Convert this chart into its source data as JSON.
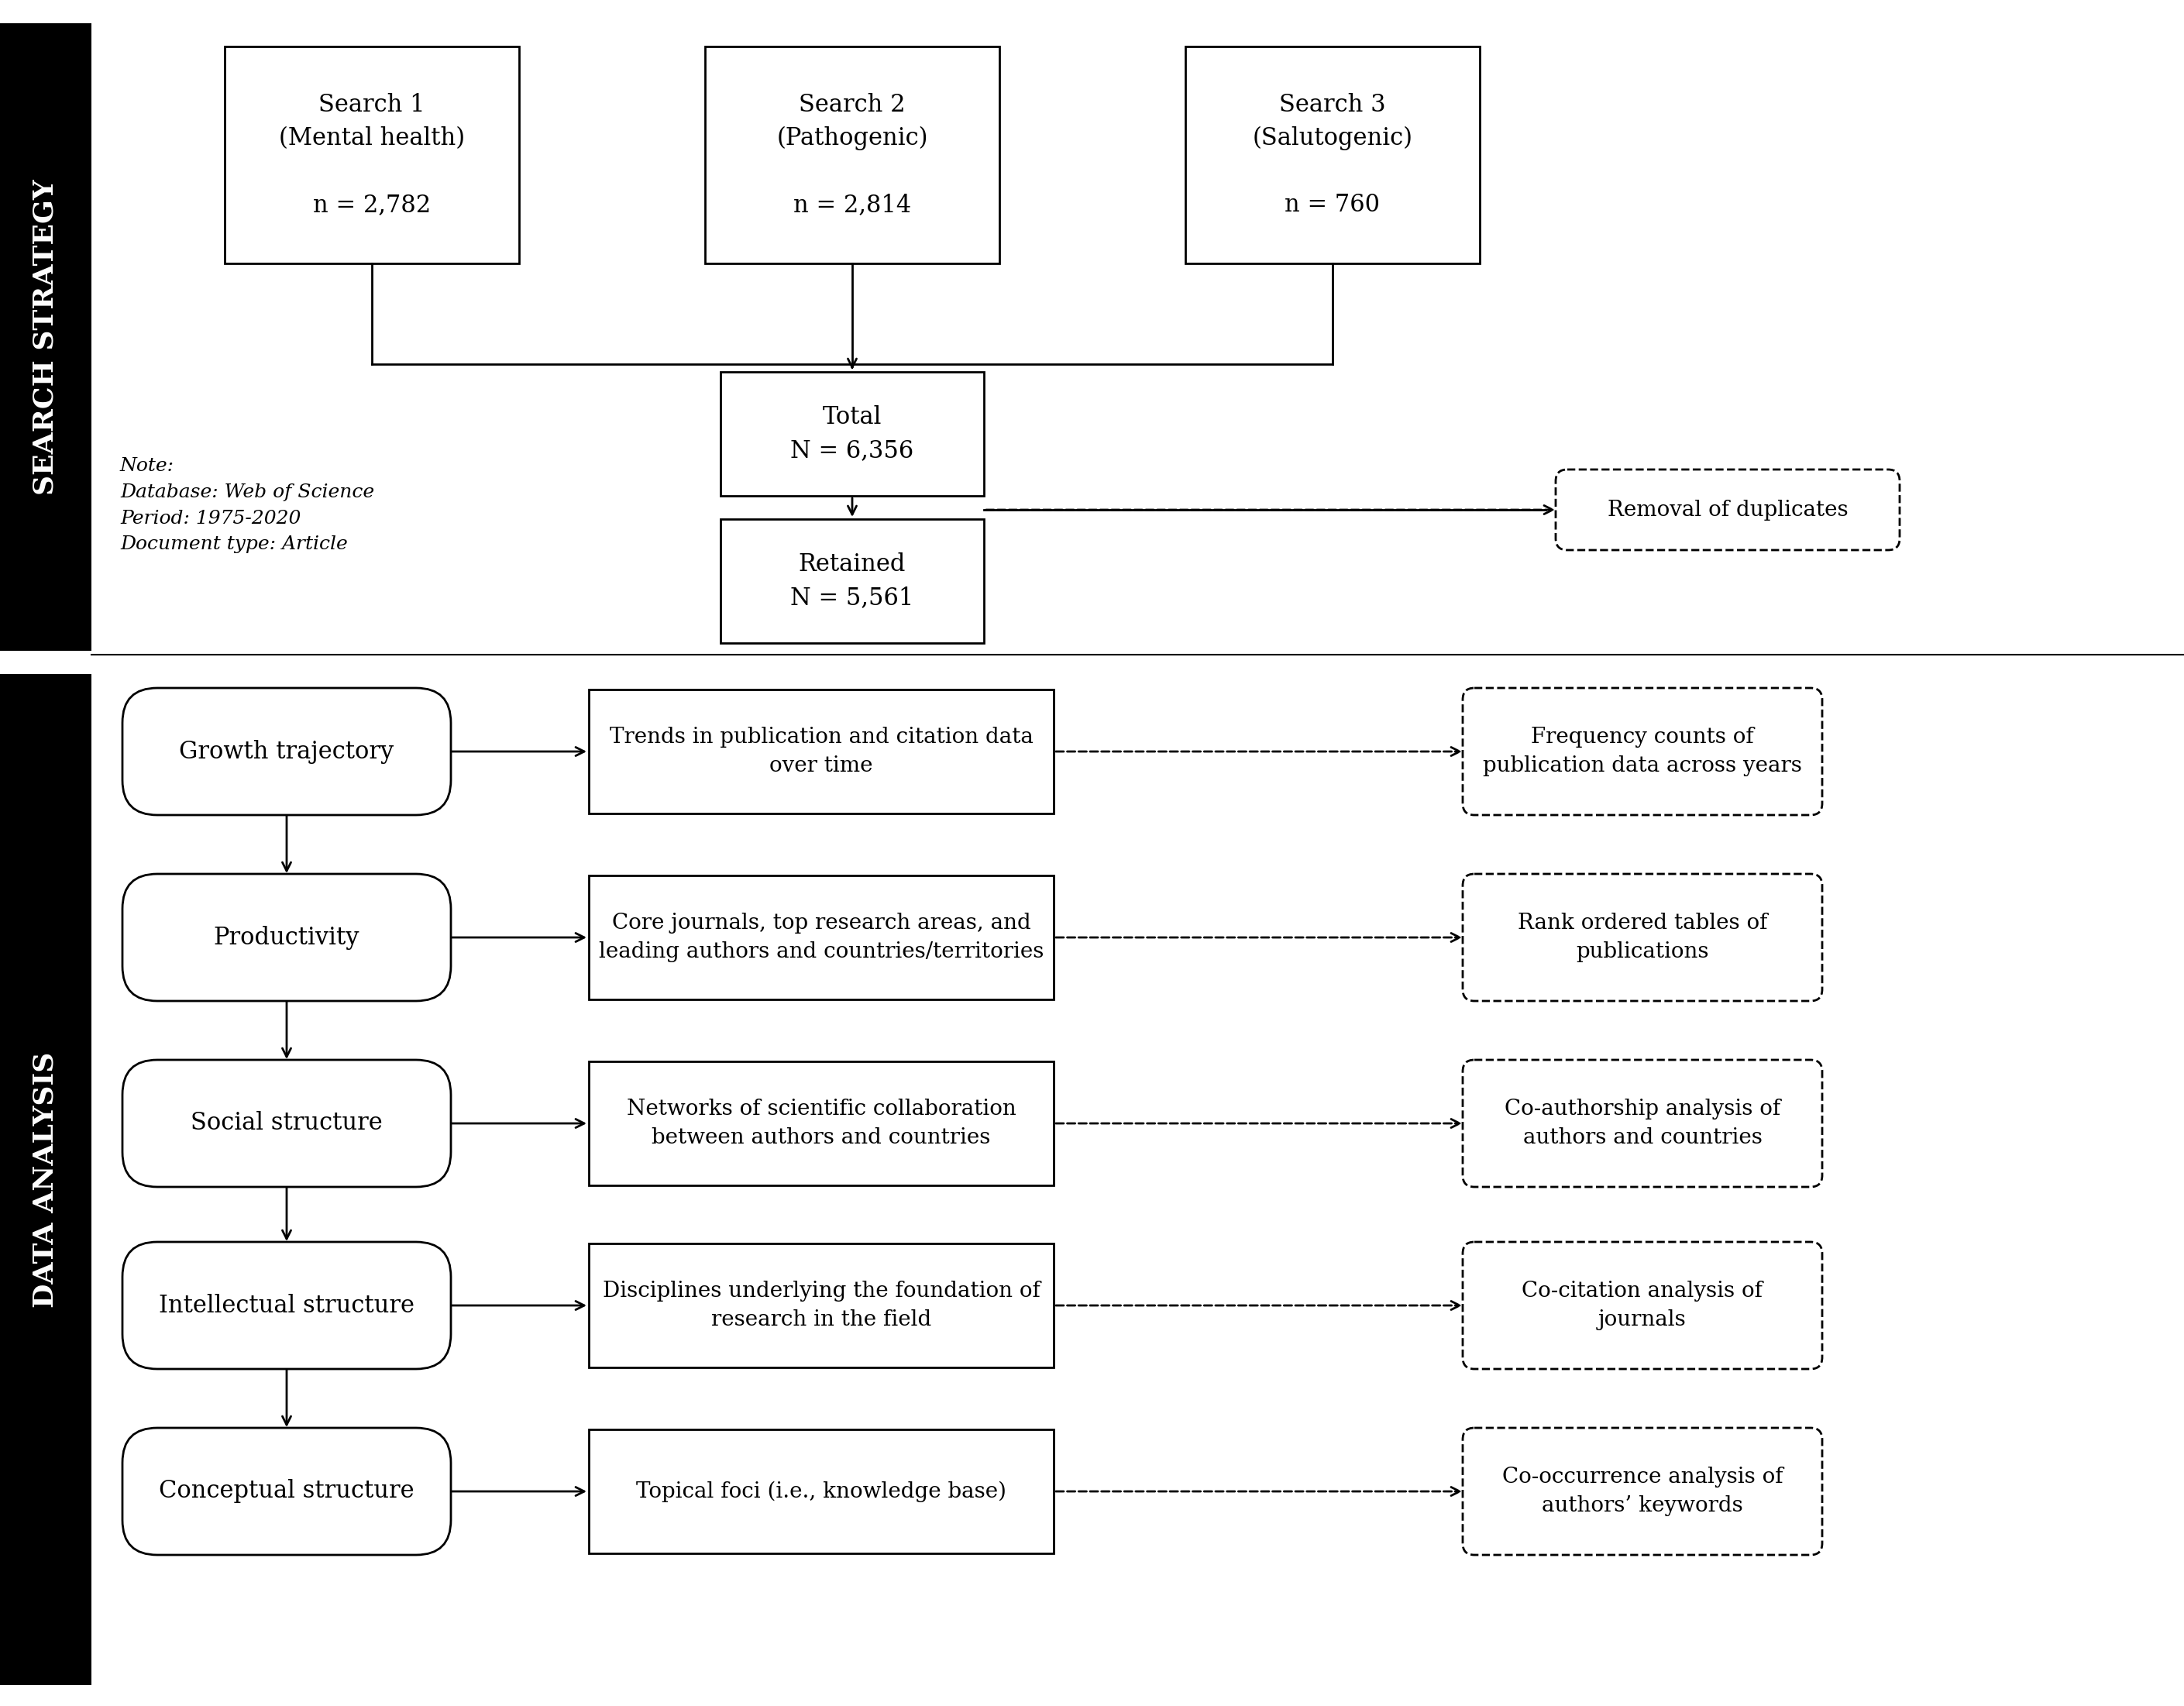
{
  "bg_color": "#ffffff",
  "sidebar1_label": "SEARCH STRATEGY",
  "sidebar2_label": "DATA ANALYSIS",
  "search_box1": "Search 1\n(Mental health)\n\nn = 2,782",
  "search_box2": "Search 2\n(Pathogenic)\n\nn = 2,814",
  "search_box3": "Search 3\n(Salutogenic)\n\nn = 760",
  "total_label": "Total\nN = 6,356",
  "retained_label": "Retained\nN = 5,561",
  "removal_label": "Removal of duplicates",
  "note_text": "Note:\nDatabase: Web of Science\nPeriod: 1975-2020\nDocument type: Article",
  "analysis_rows": [
    {
      "left_label": "Growth trajectory",
      "mid_label": "Trends in publication and citation data\nover time",
      "right_label": "Frequency counts of\npublication data across years"
    },
    {
      "left_label": "Productivity",
      "mid_label": "Core journals, top research areas, and\nleading authors and countries/territories",
      "right_label": "Rank ordered tables of\npublications"
    },
    {
      "left_label": "Social structure",
      "mid_label": "Networks of scientific collaboration\nbetween authors and countries",
      "right_label": "Co-authorship analysis of\nauthors and countries"
    },
    {
      "left_label": "Intellectual structure",
      "mid_label": "Disciplines underlying the foundation of\nresearch in the field",
      "right_label": "Co-citation analysis of\njournals"
    },
    {
      "left_label": "Conceptual structure",
      "mid_label": "Topical foci (i.e., knowledge base)",
      "right_label": "Co-occurrence analysis of\nauthors’ keywords"
    }
  ]
}
